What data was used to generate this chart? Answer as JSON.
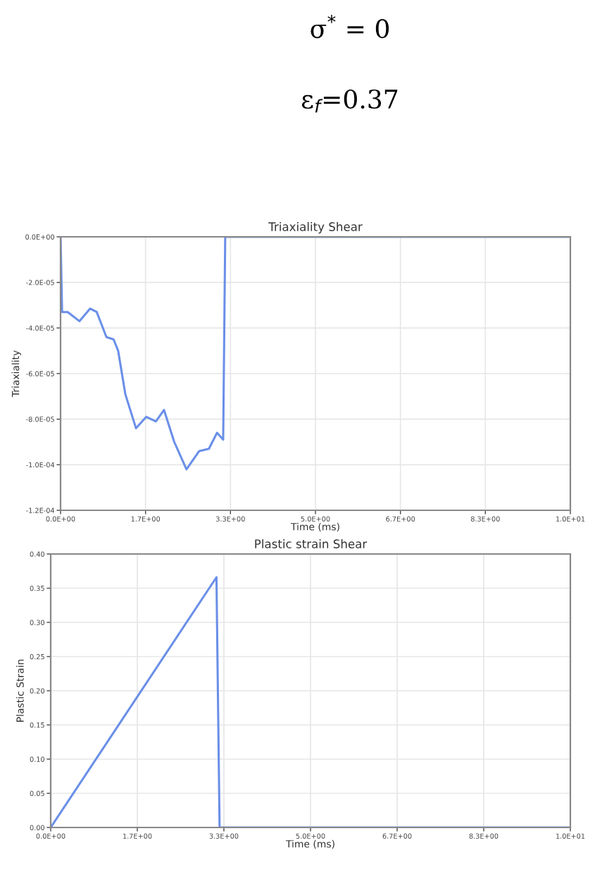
{
  "chart_data": [
    {
      "type": "line",
      "title": "Triaxiality Shear",
      "xlabel": "Time (ms)",
      "ylabel": "Triaxiality",
      "annotations": [
        "σ$^{*}$ = 0",
        "ε$_{f}$=0.37"
      ],
      "x": [
        0,
        0.03,
        0.14,
        0.37,
        0.58,
        0.71,
        0.9,
        1.04,
        1.13,
        1.27,
        1.48,
        1.68,
        1.87,
        2.03,
        2.23,
        2.47,
        2.72,
        2.91,
        3.07,
        3.19,
        3.23,
        10
      ],
      "series": [
        {
          "color": "#6a8fe8",
          "values": [
            0,
            -3.3e-05,
            -3.3e-05,
            -3.7e-05,
            -3.15e-05,
            -3.3e-05,
            -4.4e-05,
            -4.5e-05,
            -5e-05,
            -6.9e-05,
            -8.4e-05,
            -7.9e-05,
            -8.1e-05,
            -7.6e-05,
            -9e-05,
            -0.000102,
            -9.4e-05,
            -9.3e-05,
            -8.6e-05,
            -8.9e-05,
            0,
            0
          ]
        }
      ],
      "xlim": [
        0,
        10
      ],
      "xticks": [
        {
          "value": 0,
          "label": "0.0E+00"
        },
        {
          "value": 1.667,
          "label": "1.7E+00"
        },
        {
          "value": 3.333,
          "label": "3.3E+00"
        },
        {
          "value": 5,
          "label": "5.0E+00"
        },
        {
          "value": 6.667,
          "label": "6.7E+00"
        },
        {
          "value": 8.333,
          "label": "8.3E+00"
        },
        {
          "value": 10,
          "label": "1.0E+01"
        }
      ],
      "ylim": [
        -0.00012,
        0
      ],
      "yticks": [
        {
          "value": 0,
          "label": "0.0E+00"
        },
        {
          "value": -2e-05,
          "label": "-2.0E-05"
        },
        {
          "value": -4e-05,
          "label": "-4.0E-05"
        },
        {
          "value": -6e-05,
          "label": "-6.0E-05"
        },
        {
          "value": -8e-05,
          "label": "-8.0E-05"
        },
        {
          "value": -0.0001,
          "label": "-1.0E-04"
        },
        {
          "value": -0.00012,
          "label": "-1.2E-04"
        }
      ],
      "grid": true,
      "legend": false
    },
    {
      "type": "line",
      "title": "Plastic strain Shear",
      "xlabel": "Time (ms)",
      "ylabel": "Plastic Strain",
      "x": [
        0,
        3.19,
        3.25,
        10
      ],
      "series": [
        {
          "color": "#6a8fe8",
          "values": [
            0,
            0.366,
            0,
            0
          ]
        }
      ],
      "xlim": [
        0,
        10
      ],
      "xticks": [
        {
          "value": 0,
          "label": "0.0E+00"
        },
        {
          "value": 1.667,
          "label": "1.7E+00"
        },
        {
          "value": 3.333,
          "label": "3.3E+00"
        },
        {
          "value": 5,
          "label": "5.0E+00"
        },
        {
          "value": 6.667,
          "label": "6.7E+00"
        },
        {
          "value": 8.333,
          "label": "8.3E+00"
        },
        {
          "value": 10,
          "label": "1.0E+01"
        }
      ],
      "ylim": [
        0,
        0.4
      ],
      "yticks": [
        {
          "value": 0,
          "label": "0.00"
        },
        {
          "value": 0.05,
          "label": "0.05"
        },
        {
          "value": 0.1,
          "label": "0.10"
        },
        {
          "value": 0.15,
          "label": "0.15"
        },
        {
          "value": 0.2,
          "label": "0.20"
        },
        {
          "value": 0.25,
          "label": "0.25"
        },
        {
          "value": 0.3,
          "label": "0.30"
        },
        {
          "value": 0.35,
          "label": "0.35"
        },
        {
          "value": 0.4,
          "label": "0.40"
        }
      ],
      "grid": true,
      "legend": false
    }
  ]
}
